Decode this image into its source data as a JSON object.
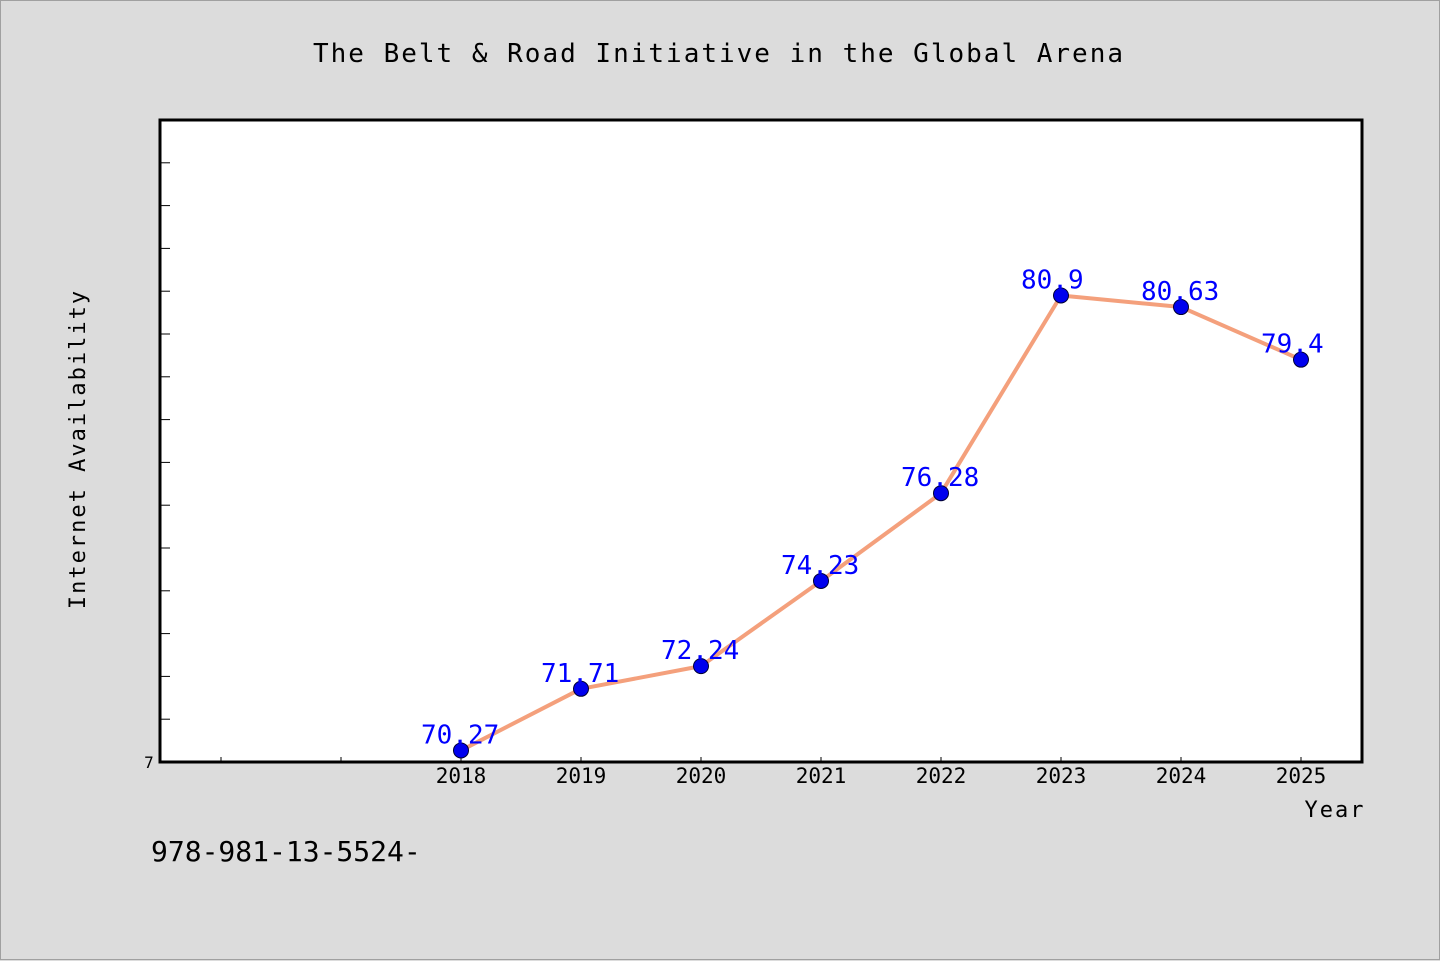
{
  "chart_data": {
    "type": "line",
    "title": "The Belt & Road Initiative in the Global Arena",
    "xlabel": "Year",
    "ylabel": "Internet Availability",
    "categories": [
      "2018",
      "2019",
      "2020",
      "2021",
      "2022",
      "2023",
      "2024",
      "2025"
    ],
    "series": [
      {
        "values": [
          70.27,
          71.71,
          72.24,
          74.23,
          76.28,
          80.9,
          80.63,
          79.4
        ],
        "labels": [
          "70.27",
          "71.71",
          "72.24",
          "74.23",
          "76.28",
          "80.9",
          "80.63",
          "79.4"
        ],
        "line_color": "#f4a07c",
        "marker_color": "#0000ee"
      }
    ],
    "ylim": [
      70,
      85
    ],
    "ytick_labels": [
      "7"
    ],
    "grid": false,
    "legend": "none"
  },
  "footer": {
    "isbn_text": "978-981-13-5524-"
  },
  "colors": {
    "background": "#dcdcdc",
    "plot_background": "#ffffff",
    "data_label": "#0000ff"
  }
}
